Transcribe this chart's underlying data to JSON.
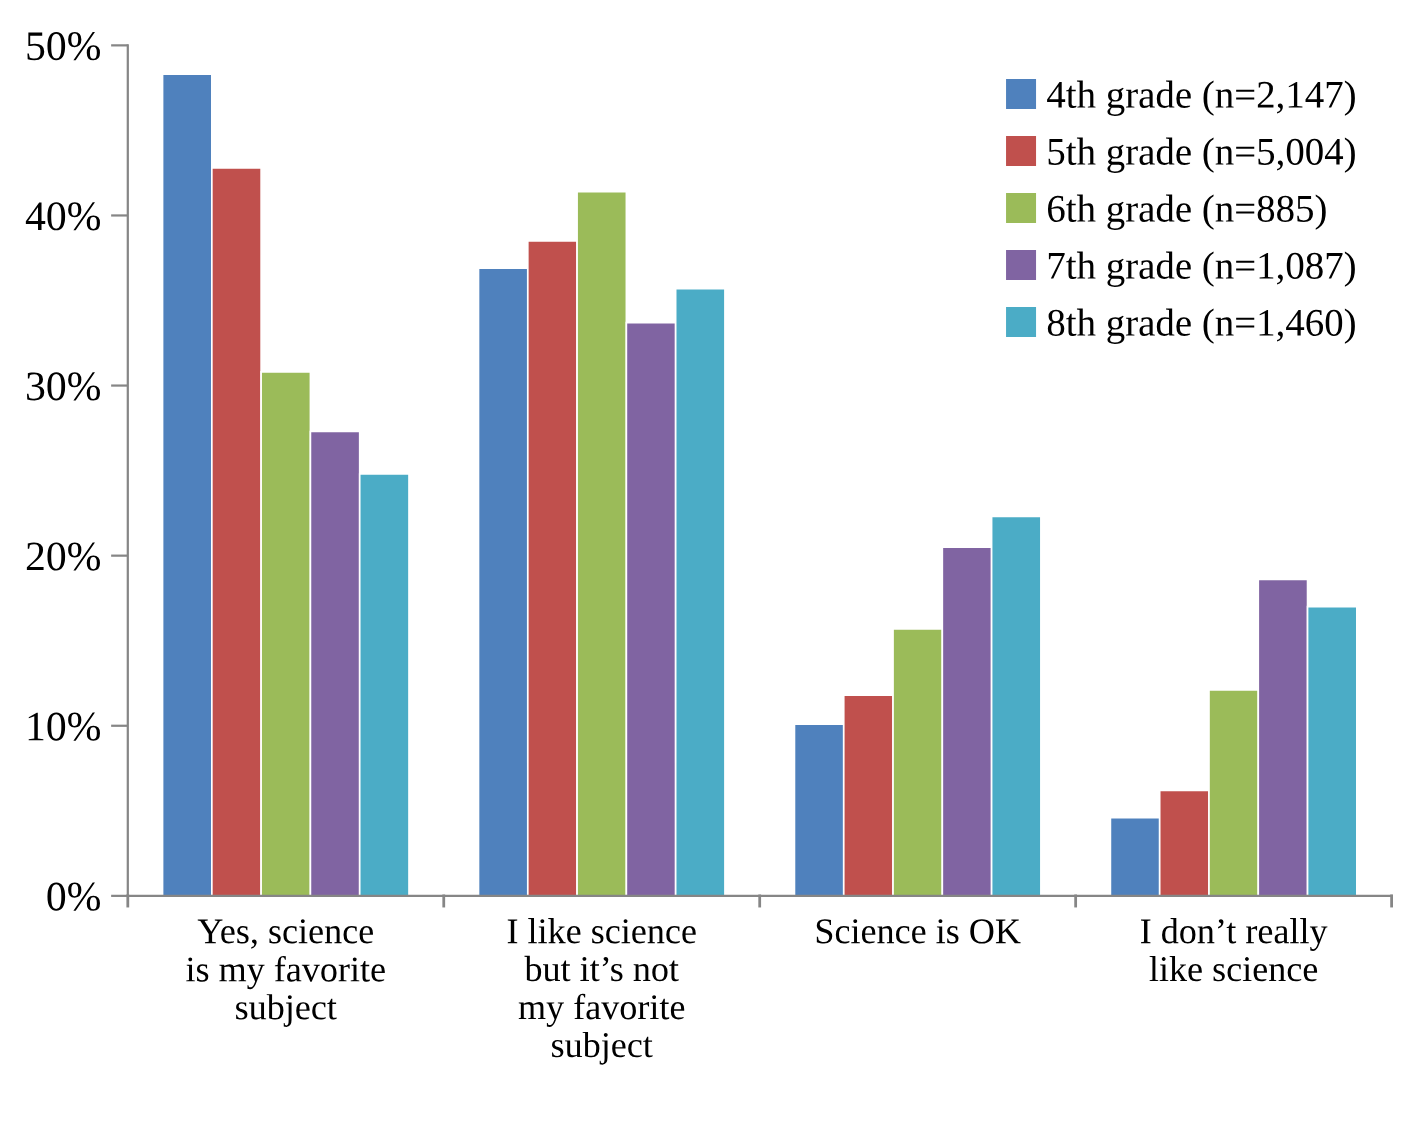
{
  "chart_data": {
    "type": "bar",
    "categories": [
      "Yes, science\nis my favorite\nsubject",
      "I like science\nbut it’s not\nmy favorite\nsubject",
      "Science is OK",
      "I don’t really\nlike science"
    ],
    "series": [
      {
        "name": "4th grade (n=2,147)",
        "color": "#4f81bd",
        "values": [
          48.3,
          36.9,
          10.1,
          4.6
        ]
      },
      {
        "name": "5th grade (n=5,004)",
        "color": "#c0504d",
        "values": [
          42.8,
          38.5,
          11.8,
          6.2
        ]
      },
      {
        "name": "6th grade (n=885)",
        "color": "#9bbb59",
        "values": [
          30.8,
          41.4,
          15.7,
          12.1
        ]
      },
      {
        "name": "7th grade (n=1,087)",
        "color": "#8064a2",
        "values": [
          27.3,
          33.7,
          20.5,
          18.6
        ]
      },
      {
        "name": "8th grade (n=1,460)",
        "color": "#4bacc6",
        "values": [
          24.8,
          35.7,
          22.3,
          17.0
        ]
      }
    ],
    "ylim": [
      0,
      50
    ],
    "yticks": [
      {
        "value": 0,
        "label": "0%"
      },
      {
        "value": 10,
        "label": "10%"
      },
      {
        "value": 20,
        "label": "20%"
      },
      {
        "value": 30,
        "label": "30%"
      },
      {
        "value": 40,
        "label": "40%"
      },
      {
        "value": 50,
        "label": "50%"
      }
    ],
    "grid": false,
    "legend": "top right"
  }
}
